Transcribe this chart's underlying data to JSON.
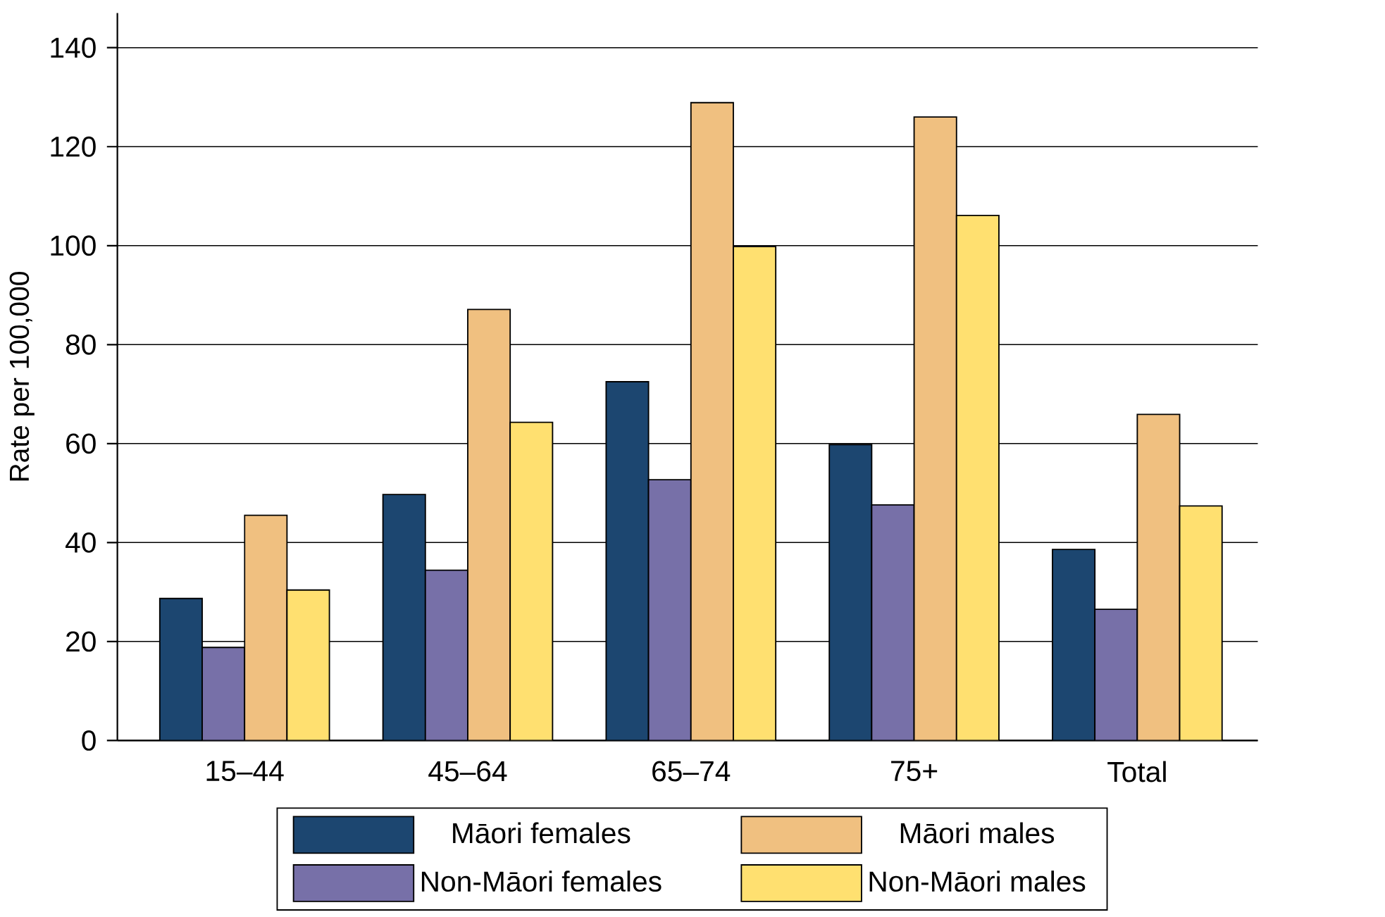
{
  "chart_data": {
    "type": "bar",
    "ylabel": "Rate per 100,000",
    "categories": [
      "15–44",
      "45–64",
      "65–74",
      "75+",
      "Total"
    ],
    "series": [
      {
        "name": "Māori females",
        "color": "#1c4670",
        "values": [
          28.7,
          49.7,
          72.5,
          59.8,
          38.6
        ]
      },
      {
        "name": "Non-Māori females",
        "color": "#7770a8",
        "values": [
          18.8,
          34.4,
          52.7,
          47.6,
          26.5
        ]
      },
      {
        "name": "Māori males",
        "color": "#f0c080",
        "values": [
          45.5,
          87.1,
          128.9,
          126.0,
          65.9
        ]
      },
      {
        "name": "Non-Māori males",
        "color": "#ffe070",
        "values": [
          30.4,
          64.3,
          99.8,
          106.1,
          47.4
        ]
      }
    ],
    "ylim": [
      0,
      147
    ],
    "yticks": [
      0,
      20,
      40,
      60,
      80,
      100,
      120,
      140
    ],
    "grid": "y",
    "legend": "bottom"
  }
}
